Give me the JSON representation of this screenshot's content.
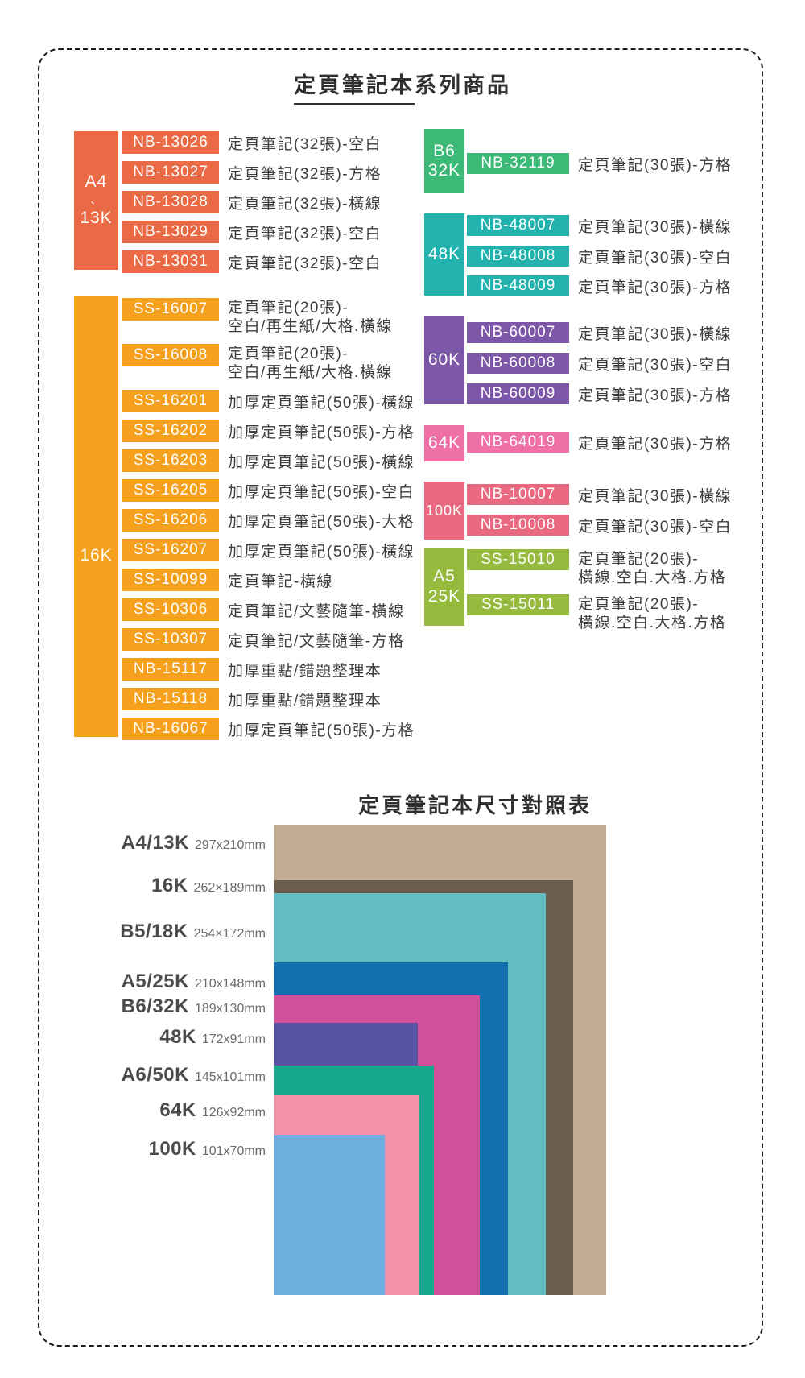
{
  "header": {
    "title_underlined": "定頁筆記本",
    "title_rest": "系列商品"
  },
  "catalog": {
    "groups": [
      {
        "key": "a4-13k",
        "column": "left",
        "label_lines": [
          "A4",
          "、",
          "13K"
        ],
        "color": "#ea6a45",
        "items": [
          {
            "code": "NB-13026",
            "desc": [
              "定頁筆記(32張)-空白"
            ]
          },
          {
            "code": "NB-13027",
            "desc": [
              "定頁筆記(32張)-方格"
            ]
          },
          {
            "code": "NB-13028",
            "desc": [
              "定頁筆記(32張)-橫線"
            ]
          },
          {
            "code": "NB-13029",
            "desc": [
              "定頁筆記(32張)-空白"
            ]
          },
          {
            "code": "NB-13031",
            "desc": [
              "定頁筆記(32張)-空白"
            ]
          }
        ]
      },
      {
        "key": "16k",
        "column": "left",
        "label_lines": [
          "16K"
        ],
        "color": "#f5a11d",
        "items": [
          {
            "code": "SS-16007",
            "desc": [
              "定頁筆記(20張)-",
              "空白/再生紙/大格.橫線"
            ]
          },
          {
            "code": "SS-16008",
            "desc": [
              "定頁筆記(20張)-",
              "空白/再生紙/大格.橫線"
            ]
          },
          {
            "code": "SS-16201",
            "desc": [
              "加厚定頁筆記(50張)-橫線"
            ]
          },
          {
            "code": "SS-16202",
            "desc": [
              "加厚定頁筆記(50張)-方格"
            ]
          },
          {
            "code": "SS-16203",
            "desc": [
              "加厚定頁筆記(50張)-橫線"
            ]
          },
          {
            "code": "SS-16205",
            "desc": [
              "加厚定頁筆記(50張)-空白"
            ]
          },
          {
            "code": "SS-16206",
            "desc": [
              "加厚定頁筆記(50張)-大格"
            ]
          },
          {
            "code": "SS-16207",
            "desc": [
              "加厚定頁筆記(50張)-橫線"
            ]
          },
          {
            "code": "SS-10099",
            "desc": [
              "定頁筆記-橫線"
            ]
          },
          {
            "code": "SS-10306",
            "desc": [
              "定頁筆記/文藝隨筆-橫線"
            ]
          },
          {
            "code": "SS-10307",
            "desc": [
              "定頁筆記/文藝隨筆-方格"
            ]
          },
          {
            "code": "NB-15117",
            "desc": [
              "加厚重點/錯題整理本"
            ]
          },
          {
            "code": "NB-15118",
            "desc": [
              "加厚重點/錯題整理本"
            ]
          },
          {
            "code": "NB-16067",
            "desc": [
              "加厚定頁筆記(50張)-方格"
            ]
          }
        ]
      },
      {
        "key": "b6-32k",
        "column": "right",
        "label_lines": [
          "B6",
          "32K"
        ],
        "color": "#3cb877",
        "items": [
          {
            "code": "NB-32119",
            "desc": [
              "定頁筆記(30張)-方格"
            ]
          }
        ]
      },
      {
        "key": "48k",
        "column": "right",
        "label_lines": [
          "48K"
        ],
        "color": "#23b2ad",
        "items": [
          {
            "code": "NB-48007",
            "desc": [
              "定頁筆記(30張)-橫線"
            ]
          },
          {
            "code": "NB-48008",
            "desc": [
              "定頁筆記(30張)-空白"
            ]
          },
          {
            "code": "NB-48009",
            "desc": [
              "定頁筆記(30張)-方格"
            ]
          }
        ]
      },
      {
        "key": "60k",
        "column": "right",
        "label_lines": [
          "60K"
        ],
        "color": "#7d57a7",
        "items": [
          {
            "code": "NB-60007",
            "desc": [
              "定頁筆記(30張)-橫線"
            ]
          },
          {
            "code": "NB-60008",
            "desc": [
              "定頁筆記(30張)-空白"
            ]
          },
          {
            "code": "NB-60009",
            "desc": [
              "定頁筆記(30張)-方格"
            ]
          }
        ]
      },
      {
        "key": "64k",
        "column": "right",
        "label_lines": [
          "64K"
        ],
        "color": "#ef6fa7",
        "items": [
          {
            "code": "NB-64019",
            "desc": [
              "定頁筆記(30張)-方格"
            ]
          }
        ]
      },
      {
        "key": "100k",
        "column": "right",
        "label_lines": [
          "100K"
        ],
        "color": "#e96a80",
        "items": [
          {
            "code": "NB-10007",
            "desc": [
              "定頁筆記(30張)-橫線"
            ]
          },
          {
            "code": "NB-10008",
            "desc": [
              "定頁筆記(30張)-空白"
            ]
          }
        ]
      },
      {
        "key": "a5-25k",
        "column": "right",
        "label_lines": [
          "A5",
          "25K"
        ],
        "color": "#95ba3e",
        "items": [
          {
            "code": "SS-15010",
            "desc": [
              "定頁筆記(20張)-",
              "橫線.空白.大格.方格"
            ]
          },
          {
            "code": "SS-15011",
            "desc": [
              "定頁筆記(20張)-",
              "橫線.空白.大格.方格"
            ]
          }
        ]
      }
    ]
  },
  "size_chart": {
    "title": "定頁筆記本尺寸對照表"
  },
  "chart_data": {
    "type": "nested-rectangles-size-comparison",
    "title": "定頁筆記本尺寸對照表",
    "anchor": "common bottom-left corner, rectangles drawn portrait, largest at back",
    "entries": [
      {
        "name": "A4/13K",
        "size_label": "297x210mm",
        "width_mm": 297,
        "height_mm": 210,
        "color": "#c2ab93"
      },
      {
        "name": "16K",
        "size_label": "262×189mm",
        "width_mm": 262,
        "height_mm": 189,
        "color": "#6b5c4e"
      },
      {
        "name": "B5/18K",
        "size_label": "254×172mm",
        "width_mm": 254,
        "height_mm": 172,
        "color": "#64bdc5"
      },
      {
        "name": "A5/25K",
        "size_label": "210x148mm",
        "width_mm": 210,
        "height_mm": 148,
        "color": "#1270b1"
      },
      {
        "name": "B6/32K",
        "size_label": "189x130mm",
        "width_mm": 189,
        "height_mm": 130,
        "color": "#d1509a"
      },
      {
        "name": "48K",
        "size_label": "172x91mm",
        "width_mm": 172,
        "height_mm": 91,
        "color": "#5752a3"
      },
      {
        "name": "A6/50K",
        "size_label": "145x101mm",
        "width_mm": 145,
        "height_mm": 101,
        "color": "#16a78d"
      },
      {
        "name": "64K",
        "size_label": "126x92mm",
        "width_mm": 126,
        "height_mm": 92,
        "color": "#f191aa"
      },
      {
        "name": "100K",
        "size_label": "101x70mm",
        "width_mm": 101,
        "height_mm": 70,
        "color": "#6daede"
      }
    ]
  }
}
